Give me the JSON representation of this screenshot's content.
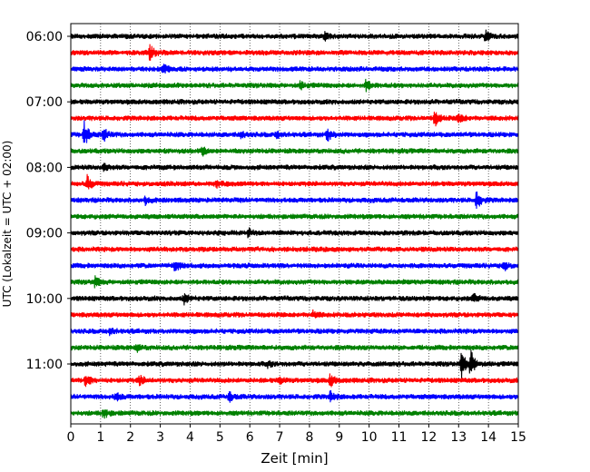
{
  "chart_data": {
    "type": "line",
    "title": "",
    "xlabel": "Zeit  [min]",
    "ylabel": "UTC (Lokalzeit = UTC + 02:00)",
    "xlim": [
      0,
      15
    ],
    "x_ticks": [
      "0",
      "1",
      "2",
      "3",
      "4",
      "5",
      "6",
      "7",
      "8",
      "9",
      "10",
      "11",
      "12",
      "13",
      "14",
      "15"
    ],
    "y_tick_labels": [
      "06:00",
      "07:00",
      "08:00",
      "09:00",
      "10:00",
      "11:00"
    ],
    "grid": "vertical dotted lines at each minute",
    "trace_interval_min": 15,
    "start_time": "06:00",
    "trace_colors": [
      "#000000",
      "#ff0000",
      "#0000ff",
      "#008000"
    ],
    "traces": [
      {
        "start": "06:00",
        "color": "#000000",
        "events": [
          {
            "t": 8.5,
            "amp": 0.25
          },
          {
            "t": 13.9,
            "amp": 0.35
          }
        ]
      },
      {
        "start": "06:15",
        "color": "#ff0000",
        "events": [
          {
            "t": 2.65,
            "amp": 0.45
          }
        ]
      },
      {
        "start": "06:30",
        "color": "#0000ff",
        "events": [
          {
            "t": 3.1,
            "amp": 0.3
          }
        ]
      },
      {
        "start": "06:45",
        "color": "#008000",
        "events": [
          {
            "t": 7.7,
            "amp": 0.2
          },
          {
            "t": 9.9,
            "amp": 0.35
          }
        ]
      },
      {
        "start": "07:00",
        "color": "#000000",
        "events": []
      },
      {
        "start": "07:15",
        "color": "#ff0000",
        "events": [
          {
            "t": 12.2,
            "amp": 0.45
          },
          {
            "t": 13.0,
            "amp": 0.3
          }
        ]
      },
      {
        "start": "07:30",
        "color": "#0000ff",
        "events": [
          {
            "t": 0.45,
            "amp": 0.75
          },
          {
            "t": 1.1,
            "amp": 0.4
          },
          {
            "t": 5.7,
            "amp": 0.2
          },
          {
            "t": 6.9,
            "amp": 0.2
          },
          {
            "t": 8.6,
            "amp": 0.4
          }
        ]
      },
      {
        "start": "07:45",
        "color": "#008000",
        "events": [
          {
            "t": 4.4,
            "amp": 0.3
          }
        ]
      },
      {
        "start": "08:00",
        "color": "#000000",
        "events": [
          {
            "t": 1.1,
            "amp": 0.25
          }
        ]
      },
      {
        "start": "08:15",
        "color": "#ff0000",
        "events": [
          {
            "t": 0.55,
            "amp": 0.45
          },
          {
            "t": 4.9,
            "amp": 0.2
          }
        ]
      },
      {
        "start": "08:30",
        "color": "#0000ff",
        "events": [
          {
            "t": 2.5,
            "amp": 0.2
          },
          {
            "t": 13.6,
            "amp": 0.55
          }
        ]
      },
      {
        "start": "08:45",
        "color": "#008000",
        "events": []
      },
      {
        "start": "09:00",
        "color": "#000000",
        "events": [
          {
            "t": 5.95,
            "amp": 0.25
          }
        ]
      },
      {
        "start": "09:15",
        "color": "#ff0000",
        "events": []
      },
      {
        "start": "09:30",
        "color": "#0000ff",
        "events": [
          {
            "t": 3.5,
            "amp": 0.35
          },
          {
            "t": 14.5,
            "amp": 0.3
          }
        ]
      },
      {
        "start": "09:45",
        "color": "#008000",
        "events": [
          {
            "t": 0.8,
            "amp": 0.3
          }
        ]
      },
      {
        "start": "10:00",
        "color": "#000000",
        "events": [
          {
            "t": 3.8,
            "amp": 0.3
          },
          {
            "t": 13.5,
            "amp": 0.3
          }
        ]
      },
      {
        "start": "10:15",
        "color": "#ff0000",
        "events": [
          {
            "t": 8.1,
            "amp": 0.2
          }
        ]
      },
      {
        "start": "10:30",
        "color": "#0000ff",
        "events": [
          {
            "t": 1.3,
            "amp": 0.2
          }
        ]
      },
      {
        "start": "10:45",
        "color": "#008000",
        "events": [
          {
            "t": 2.2,
            "amp": 0.2
          }
        ]
      },
      {
        "start": "11:00",
        "color": "#000000",
        "events": [
          {
            "t": 13.1,
            "amp": 0.75
          },
          {
            "t": 13.4,
            "amp": 0.8
          },
          {
            "t": 6.6,
            "amp": 0.15
          }
        ]
      },
      {
        "start": "11:15",
        "color": "#ff0000",
        "events": [
          {
            "t": 0.5,
            "amp": 0.4
          },
          {
            "t": 2.3,
            "amp": 0.3
          },
          {
            "t": 8.7,
            "amp": 0.4
          },
          {
            "t": 7.0,
            "amp": 0.2
          }
        ]
      },
      {
        "start": "11:30",
        "color": "#0000ff",
        "events": [
          {
            "t": 1.5,
            "amp": 0.25
          },
          {
            "t": 5.3,
            "amp": 0.3
          },
          {
            "t": 8.7,
            "amp": 0.3
          }
        ]
      },
      {
        "start": "11:45",
        "color": "#008000",
        "events": [
          {
            "t": 1.1,
            "amp": 0.3
          }
        ]
      }
    ]
  }
}
